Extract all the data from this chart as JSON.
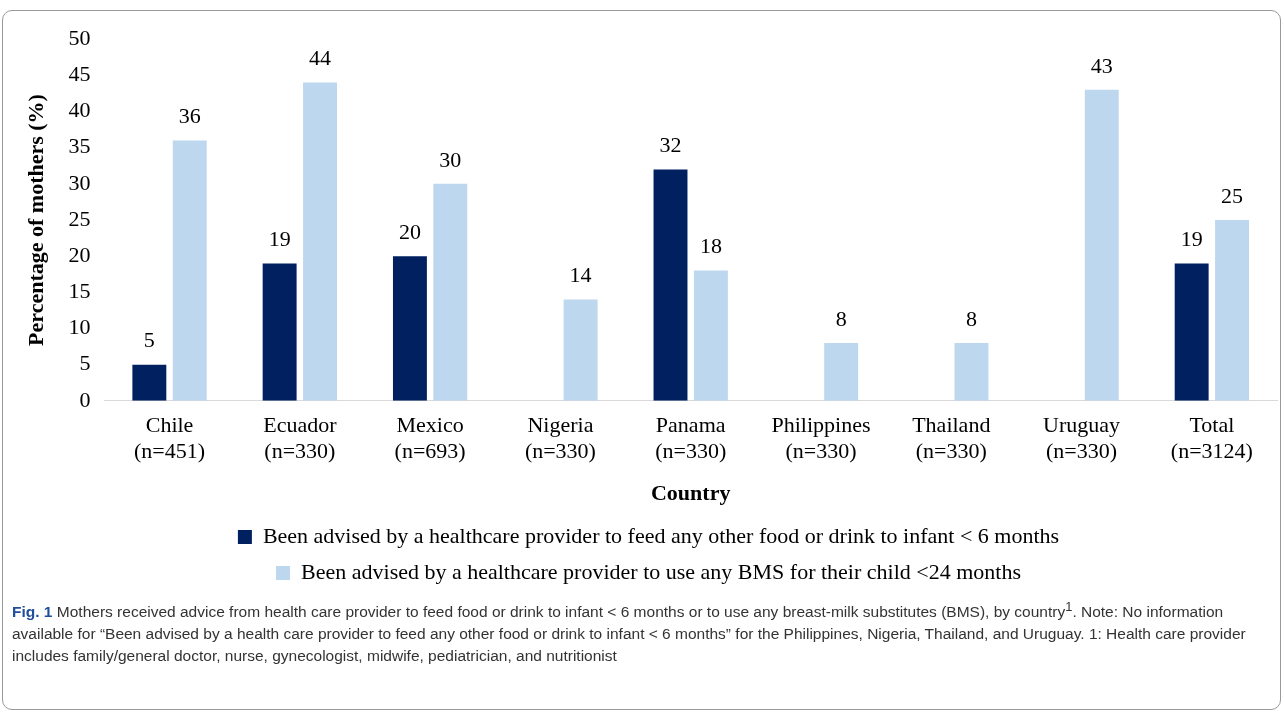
{
  "chart_data": {
    "type": "bar",
    "xlabel": "Country",
    "ylabel": "Percentage of mothers (%)",
    "categories": [
      "Chile\n(n=451)",
      "Ecuador\n(n=330)",
      "Mexico\n(n=693)",
      "Nigeria\n(n=330)",
      "Panama\n(n=330)",
      "Philippines\n(n=330)",
      "Thailand\n(n=330)",
      "Uruguay\n(n=330)",
      "Total\n(n=3124)"
    ],
    "series": [
      {
        "name": "Been advised by a healthcare provider to feed any other food or drink to infant < 6 months",
        "color": "#002060",
        "values": [
          5,
          19,
          20,
          null,
          32,
          null,
          null,
          null,
          19
        ]
      },
      {
        "name": "Been advised by a healthcare provider to use any BMS for their child <24 months",
        "color": "#bdd7ee",
        "values": [
          36,
          44,
          30,
          14,
          18,
          8,
          8,
          43,
          25
        ]
      }
    ],
    "ylim": [
      0,
      50
    ],
    "yticks": [
      0,
      5,
      10,
      15,
      20,
      25,
      30,
      35,
      40,
      45,
      50
    ],
    "grid": false,
    "legend": "bottom",
    "data_labels": true,
    "annotations": [
      "Fig. 1",
      "Mothers received advice from health care provider to feed food or drink to infant < 6 months or to use any breast-milk substitutes (BMS), by country$^{1}$. Note: No information available for “Been advised by a health care provider to feed any other food or drink to infant < 6 months” for the Philippines, Nigeria, Thailand, and Uruguay. 1: Health care provider includes family/general doctor, nurse, gynecologist, midwife, pediatrician, and nutritionist"
    ]
  }
}
